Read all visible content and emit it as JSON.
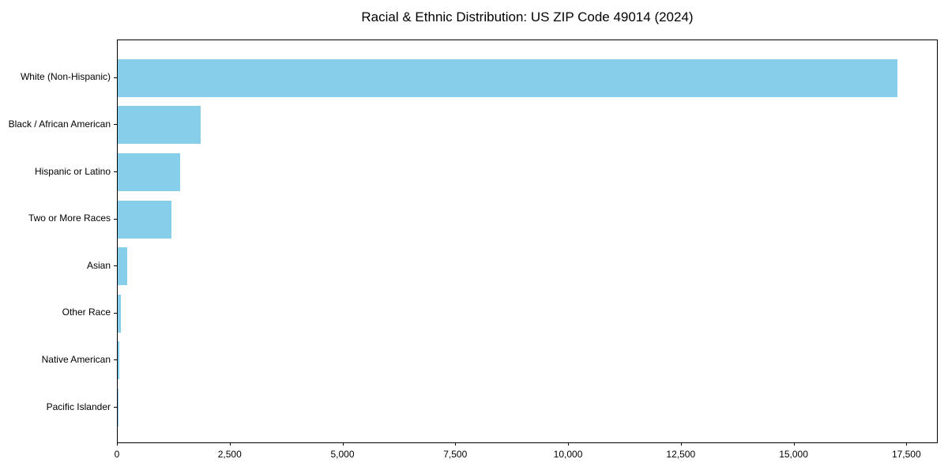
{
  "title": "Racial & Ethnic Distribution: US ZIP Code 49014 (2024)",
  "chart_data": {
    "type": "bar",
    "orientation": "horizontal",
    "title": "Racial & Ethnic Distribution: US ZIP Code 49014 (2024)",
    "categories": [
      "White (Non-Hispanic)",
      "Black / African American",
      "Hispanic or Latino",
      "Two or More Races",
      "Asian",
      "Other Race",
      "Native American",
      "Pacific Islander"
    ],
    "values": [
      17290,
      1835,
      1380,
      1185,
      215,
      70,
      35,
      10
    ],
    "xlabel": "",
    "ylabel": "",
    "xlim": [
      0,
      18160
    ],
    "xticks": [
      0,
      2500,
      5000,
      7500,
      10000,
      12500,
      15000,
      17500
    ],
    "xtick_labels": [
      "0",
      "2,500",
      "5,000",
      "7,500",
      "10,000",
      "12,500",
      "15,000",
      "17,500"
    ],
    "bar_color": "#87CEEB",
    "grid": false,
    "legend": "none",
    "background_color": "#ffffff",
    "axis_color": "#000000"
  }
}
